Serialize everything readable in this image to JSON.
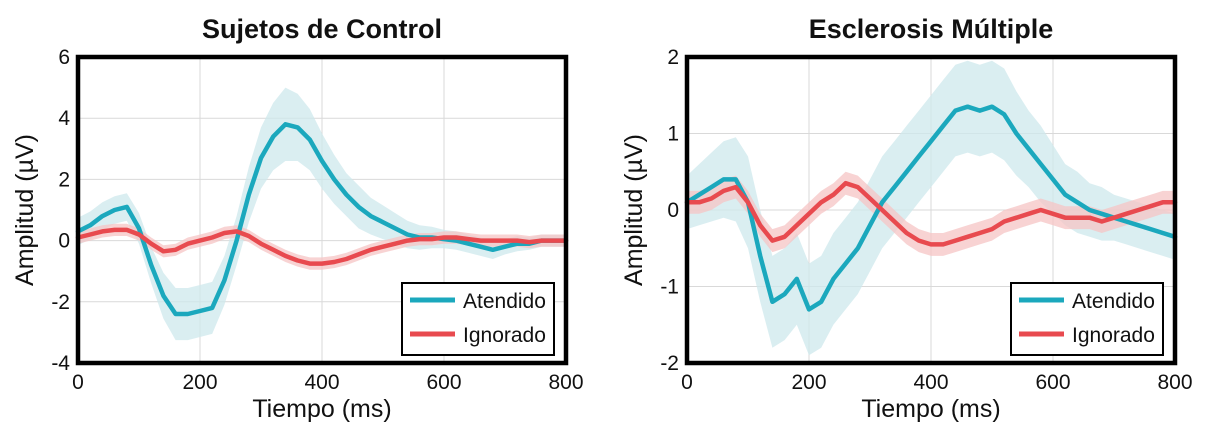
{
  "chart_data": [
    {
      "type": "line",
      "title": "Sujetos de Control",
      "xlabel": "Tiempo (ms)",
      "ylabel": "Amplitud (µV)",
      "xlim": [
        0,
        800
      ],
      "ylim": [
        -4,
        6
      ],
      "xticks": [
        0,
        200,
        400,
        600,
        800
      ],
      "yticks": [
        -4,
        -2,
        0,
        2,
        4,
        6
      ],
      "xtick_labels": [
        "0",
        "200",
        "400",
        "600",
        "800"
      ],
      "ytick_labels": [
        "-4",
        "-2",
        "0",
        "2",
        "4",
        "6"
      ],
      "grid": true,
      "legend_position": "bottom-right",
      "series": [
        {
          "name": "Atendido",
          "color": "#1ba8bd",
          "band_color": "#cde8ec",
          "x": [
            0,
            20,
            40,
            60,
            80,
            100,
            120,
            140,
            160,
            180,
            200,
            220,
            240,
            260,
            280,
            300,
            320,
            340,
            360,
            380,
            400,
            420,
            440,
            460,
            480,
            500,
            520,
            540,
            560,
            580,
            600,
            620,
            640,
            660,
            680,
            700,
            720,
            740,
            760,
            780,
            800
          ],
          "values": [
            0.3,
            0.5,
            0.8,
            1.0,
            1.1,
            0.4,
            -0.8,
            -1.8,
            -2.4,
            -2.4,
            -2.3,
            -2.2,
            -1.3,
            0.0,
            1.5,
            2.7,
            3.4,
            3.8,
            3.7,
            3.3,
            2.6,
            2.0,
            1.5,
            1.1,
            0.8,
            0.6,
            0.4,
            0.2,
            0.1,
            0.1,
            0.05,
            0.0,
            -0.1,
            -0.2,
            -0.3,
            -0.2,
            -0.1,
            -0.1,
            0.0,
            0.0,
            0.0
          ],
          "error": [
            0.45,
            0.45,
            0.45,
            0.45,
            0.45,
            0.5,
            0.6,
            0.75,
            0.85,
            0.85,
            0.85,
            0.85,
            0.8,
            0.8,
            0.9,
            1.0,
            1.1,
            1.2,
            1.1,
            1.0,
            0.9,
            0.8,
            0.7,
            0.7,
            0.6,
            0.55,
            0.5,
            0.45,
            0.4,
            0.35,
            0.3,
            0.3,
            0.3,
            0.3,
            0.3,
            0.25,
            0.25,
            0.2,
            0.2,
            0.2,
            0.2
          ]
        },
        {
          "name": "Ignorado",
          "color": "#e84a4f",
          "band_color": "#f5c4c4",
          "x": [
            0,
            20,
            40,
            60,
            80,
            100,
            120,
            140,
            160,
            180,
            200,
            220,
            240,
            260,
            280,
            300,
            320,
            340,
            360,
            380,
            400,
            420,
            440,
            460,
            480,
            500,
            520,
            540,
            560,
            580,
            600,
            620,
            640,
            660,
            680,
            700,
            720,
            740,
            760,
            780,
            800
          ],
          "values": [
            0.1,
            0.2,
            0.3,
            0.35,
            0.35,
            0.2,
            -0.1,
            -0.35,
            -0.3,
            -0.1,
            0.0,
            0.1,
            0.25,
            0.3,
            0.15,
            -0.1,
            -0.3,
            -0.5,
            -0.65,
            -0.75,
            -0.75,
            -0.7,
            -0.6,
            -0.45,
            -0.3,
            -0.2,
            -0.1,
            0.0,
            0.05,
            0.05,
            0.1,
            0.1,
            0.05,
            0.0,
            0.0,
            0.0,
            0.0,
            -0.05,
            0.0,
            0.0,
            0.0
          ],
          "error": [
            0.2,
            0.2,
            0.2,
            0.2,
            0.2,
            0.2,
            0.2,
            0.2,
            0.2,
            0.2,
            0.2,
            0.2,
            0.2,
            0.2,
            0.2,
            0.2,
            0.2,
            0.2,
            0.2,
            0.2,
            0.2,
            0.2,
            0.2,
            0.2,
            0.2,
            0.2,
            0.2,
            0.2,
            0.2,
            0.2,
            0.2,
            0.2,
            0.2,
            0.2,
            0.2,
            0.2,
            0.2,
            0.2,
            0.2,
            0.2,
            0.2
          ]
        }
      ]
    },
    {
      "type": "line",
      "title": "Esclerosis Múltiple",
      "xlabel": "Tiempo (ms)",
      "ylabel": "Amplitud (µV)",
      "xlim": [
        0,
        800
      ],
      "ylim": [
        -2,
        2
      ],
      "xticks": [
        0,
        200,
        400,
        600,
        800
      ],
      "yticks": [
        -2,
        -1,
        0,
        1,
        2
      ],
      "xtick_labels": [
        "0",
        "200",
        "400",
        "600",
        "800"
      ],
      "ytick_labels": [
        "-2",
        "-1",
        "0",
        "1",
        "2"
      ],
      "grid": true,
      "legend_position": "bottom-right",
      "series": [
        {
          "name": "Atendido",
          "color": "#1ba8bd",
          "band_color": "#cde8ec",
          "x": [
            0,
            20,
            40,
            60,
            80,
            100,
            120,
            140,
            160,
            180,
            200,
            220,
            240,
            260,
            280,
            300,
            320,
            340,
            360,
            380,
            400,
            420,
            440,
            460,
            480,
            500,
            520,
            540,
            560,
            580,
            600,
            620,
            640,
            660,
            680,
            700,
            720,
            740,
            760,
            780,
            800
          ],
          "values": [
            0.1,
            0.2,
            0.3,
            0.4,
            0.4,
            0.1,
            -0.6,
            -1.2,
            -1.1,
            -0.9,
            -1.3,
            -1.2,
            -0.9,
            -0.7,
            -0.5,
            -0.2,
            0.1,
            0.3,
            0.5,
            0.7,
            0.9,
            1.1,
            1.3,
            1.35,
            1.3,
            1.35,
            1.25,
            1.0,
            0.8,
            0.6,
            0.4,
            0.2,
            0.1,
            0.0,
            -0.05,
            -0.1,
            -0.15,
            -0.2,
            -0.25,
            -0.3,
            -0.35
          ],
          "error": [
            0.35,
            0.4,
            0.45,
            0.5,
            0.55,
            0.6,
            0.6,
            0.6,
            0.6,
            0.6,
            0.6,
            0.6,
            0.6,
            0.6,
            0.6,
            0.6,
            0.6,
            0.6,
            0.6,
            0.6,
            0.6,
            0.6,
            0.6,
            0.6,
            0.6,
            0.6,
            0.6,
            0.55,
            0.5,
            0.5,
            0.45,
            0.4,
            0.4,
            0.35,
            0.35,
            0.3,
            0.3,
            0.3,
            0.3,
            0.3,
            0.3
          ]
        },
        {
          "name": "Ignorado",
          "color": "#e84a4f",
          "band_color": "#f5c4c4",
          "x": [
            0,
            20,
            40,
            60,
            80,
            100,
            120,
            140,
            160,
            180,
            200,
            220,
            240,
            260,
            280,
            300,
            320,
            340,
            360,
            380,
            400,
            420,
            440,
            460,
            480,
            500,
            520,
            540,
            560,
            580,
            600,
            620,
            640,
            660,
            680,
            700,
            720,
            740,
            760,
            780,
            800
          ],
          "values": [
            0.1,
            0.1,
            0.15,
            0.25,
            0.3,
            0.1,
            -0.2,
            -0.4,
            -0.35,
            -0.2,
            -0.05,
            0.1,
            0.2,
            0.35,
            0.3,
            0.15,
            0.0,
            -0.15,
            -0.3,
            -0.4,
            -0.45,
            -0.45,
            -0.4,
            -0.35,
            -0.3,
            -0.25,
            -0.15,
            -0.1,
            -0.05,
            0.0,
            -0.05,
            -0.1,
            -0.1,
            -0.1,
            -0.15,
            -0.1,
            -0.05,
            0.0,
            0.05,
            0.1,
            0.1
          ],
          "error": [
            0.15,
            0.15,
            0.15,
            0.15,
            0.15,
            0.15,
            0.15,
            0.15,
            0.15,
            0.15,
            0.15,
            0.15,
            0.15,
            0.15,
            0.15,
            0.15,
            0.15,
            0.15,
            0.15,
            0.15,
            0.15,
            0.15,
            0.15,
            0.15,
            0.15,
            0.15,
            0.15,
            0.15,
            0.15,
            0.15,
            0.15,
            0.15,
            0.15,
            0.15,
            0.15,
            0.15,
            0.15,
            0.15,
            0.15,
            0.15,
            0.15
          ]
        }
      ]
    }
  ]
}
